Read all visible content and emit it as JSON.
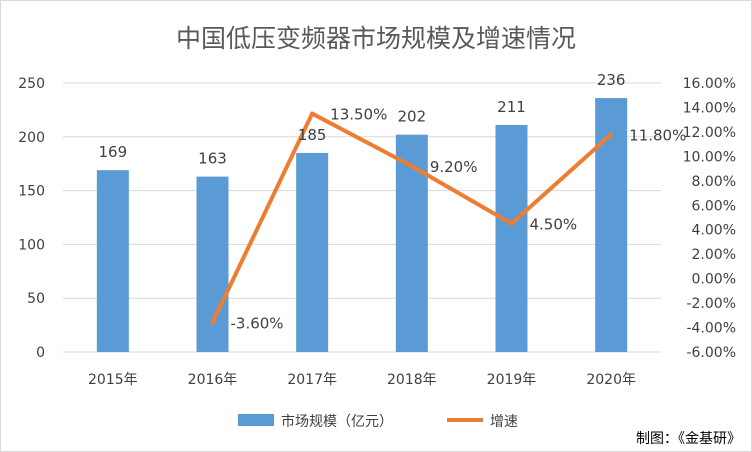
{
  "chart_data": {
    "type": "bar+line",
    "title": "中国低压变频器市场规模及增速情况",
    "categories": [
      "2015年",
      "2016年",
      "2017年",
      "2018年",
      "2019年",
      "2020年"
    ],
    "series": [
      {
        "name": "市场规模（亿元）",
        "type": "bar",
        "axis": "left",
        "color": "#5b9bd5",
        "values": [
          169,
          163,
          185,
          202,
          211,
          236
        ],
        "labels": [
          "169",
          "163",
          "185",
          "202",
          "211",
          "236"
        ]
      },
      {
        "name": "增速",
        "type": "line",
        "axis": "right",
        "color": "#ed7d31",
        "values": [
          null,
          -3.6,
          13.5,
          9.2,
          4.5,
          11.8
        ],
        "labels": [
          "",
          "-3.60%",
          "13.50%",
          "9.20%",
          "4.50%",
          "11.80%"
        ]
      }
    ],
    "y_left": {
      "min": 0,
      "max": 250,
      "ticks": [
        "0",
        "50",
        "100",
        "150",
        "200",
        "250"
      ]
    },
    "y_right": {
      "min": -6,
      "max": 16,
      "ticks": [
        "-6.00%",
        "-4.00%",
        "-2.00%",
        "0.00%",
        "2.00%",
        "4.00%",
        "6.00%",
        "8.00%",
        "10.00%",
        "12.00%",
        "14.00%",
        "16.00%"
      ]
    },
    "grid": true,
    "legend_position": "bottom",
    "source_note": "制图：《金基研》"
  }
}
